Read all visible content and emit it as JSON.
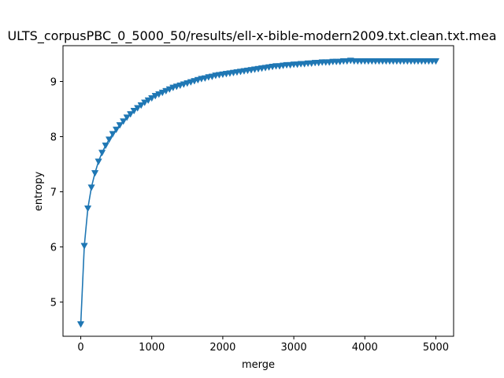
{
  "chart_data": {
    "type": "line",
    "title": "ULTS_corpusPBC_0_5000_50/results/ell-x-bible-modern2009.txt.clean.txt.mea",
    "xlabel": "merge",
    "ylabel": "entropy",
    "xlim": [
      -250,
      5250
    ],
    "ylim": [
      4.38,
      9.65
    ],
    "xticks": [
      0,
      1000,
      2000,
      3000,
      4000,
      5000
    ],
    "yticks": [
      5,
      6,
      7,
      8,
      9
    ],
    "grid": false,
    "color": "#1f77b4",
    "marker": "triangle-down",
    "series": [
      {
        "x": [
          0,
          50,
          100,
          150,
          200,
          250,
          300,
          350,
          400,
          450,
          500,
          550,
          600,
          650,
          700,
          750,
          800,
          850,
          900,
          950,
          1000,
          1050,
          1100,
          1150,
          1200,
          1250,
          1300,
          1350,
          1400,
          1450,
          1500,
          1550,
          1600,
          1650,
          1700,
          1750,
          1800,
          1850,
          1900,
          1950,
          2000,
          2050,
          2100,
          2150,
          2200,
          2250,
          2300,
          2350,
          2400,
          2450,
          2500,
          2550,
          2600,
          2650,
          2700,
          2750,
          2800,
          2850,
          2900,
          2950,
          3000,
          3050,
          3100,
          3150,
          3200,
          3250,
          3300,
          3350,
          3400,
          3450,
          3500,
          3550,
          3600,
          3650,
          3700,
          3750,
          3800,
          3850,
          3900,
          3950,
          4000,
          4050,
          4100,
          4150,
          4200,
          4250,
          4300,
          4350,
          4400,
          4450,
          4500,
          4550,
          4600,
          4650,
          4700,
          4750,
          4800,
          4850,
          4900,
          4950,
          5000
        ],
        "values": [
          4.6,
          6.02,
          6.7,
          7.08,
          7.34,
          7.55,
          7.71,
          7.84,
          7.95,
          8.05,
          8.13,
          8.21,
          8.28,
          8.35,
          8.41,
          8.47,
          8.52,
          8.57,
          8.62,
          8.66,
          8.7,
          8.74,
          8.77,
          8.8,
          8.83,
          8.86,
          8.89,
          8.91,
          8.93,
          8.95,
          8.97,
          8.99,
          9.01,
          9.03,
          9.05,
          9.06,
          9.08,
          9.09,
          9.11,
          9.12,
          9.13,
          9.14,
          9.15,
          9.16,
          9.17,
          9.18,
          9.19,
          9.2,
          9.21,
          9.22,
          9.23,
          9.24,
          9.25,
          9.26,
          9.27,
          9.28,
          9.28,
          9.29,
          9.3,
          9.3,
          9.31,
          9.31,
          9.32,
          9.32,
          9.33,
          9.33,
          9.34,
          9.34,
          9.35,
          9.35,
          9.35,
          9.36,
          9.36,
          9.36,
          9.37,
          9.37,
          9.38,
          9.37,
          9.37,
          9.37,
          9.37,
          9.37,
          9.37,
          9.37,
          9.37,
          9.37,
          9.37,
          9.37,
          9.37,
          9.37,
          9.37,
          9.37,
          9.37,
          9.37,
          9.37,
          9.37,
          9.37,
          9.37,
          9.37,
          9.37,
          9.37
        ]
      }
    ]
  }
}
